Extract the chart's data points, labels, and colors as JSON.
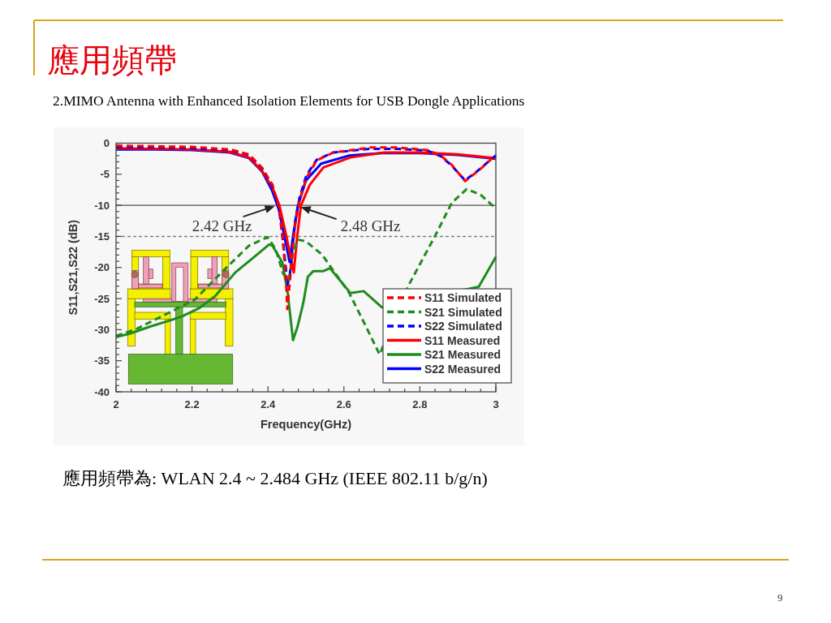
{
  "chart_data": {
    "type": "line",
    "title": "應用頻帶",
    "subtitle": "2.MIMO Antenna with Enhanced Isolation Elements for USB Dongle Applications",
    "xlabel": "Frequency(GHz)",
    "ylabel": "S11,S21,S22 (dB)",
    "xlim": [
      2,
      3
    ],
    "ylim": [
      -40,
      0
    ],
    "xticks": [
      2,
      {
        "value": 2.04,
        "label": null
      },
      {
        "value": 2.08,
        "label": null
      },
      {
        "value": 2.12,
        "label": null
      },
      {
        "value": 2.16,
        "label": null
      },
      2.2,
      {
        "value": 2.24,
        "label": null
      },
      {
        "value": 2.28,
        "label": null
      },
      {
        "value": 2.32,
        "label": null
      },
      {
        "value": 2.36,
        "label": null
      },
      2.4,
      {
        "value": 2.44,
        "label": null
      },
      {
        "value": 2.48,
        "label": null
      },
      {
        "value": 2.52,
        "label": null
      },
      {
        "value": 2.56,
        "label": null
      },
      2.6,
      {
        "value": 2.64,
        "label": null
      },
      {
        "value": 2.68,
        "label": null
      },
      {
        "value": 2.72,
        "label": null
      },
      {
        "value": 2.76,
        "label": null
      },
      2.8,
      {
        "value": 2.84,
        "label": null
      },
      {
        "value": 2.88,
        "label": null
      },
      {
        "value": 2.92,
        "label": null
      },
      {
        "value": 2.96,
        "label": null
      },
      3
    ],
    "yticks": [
      0,
      {
        "value": -1,
        "label": null
      },
      {
        "value": -2,
        "label": null
      },
      {
        "value": -3,
        "label": null
      },
      {
        "value": -4,
        "label": null
      },
      -5,
      {
        "value": -6,
        "label": null
      },
      {
        "value": -7,
        "label": null
      },
      {
        "value": -8,
        "label": null
      },
      {
        "value": -9,
        "label": null
      },
      -10,
      {
        "value": -11,
        "label": null
      },
      {
        "value": -12,
        "label": null
      },
      {
        "value": -13,
        "label": null
      },
      {
        "value": -14,
        "label": null
      },
      -15,
      {
        "value": -16,
        "label": null
      },
      {
        "value": -17,
        "label": null
      },
      {
        "value": -18,
        "label": null
      },
      {
        "value": -19,
        "label": null
      },
      -20,
      {
        "value": -21,
        "label": null
      },
      {
        "value": -22,
        "label": null
      },
      {
        "value": -23,
        "label": null
      },
      {
        "value": -24,
        "label": null
      },
      -25,
      {
        "value": -26,
        "label": null
      },
      {
        "value": -27,
        "label": null
      },
      {
        "value": -28,
        "label": null
      },
      {
        "value": -29,
        "label": null
      },
      -30,
      {
        "value": -31,
        "label": null
      },
      {
        "value": -32,
        "label": null
      },
      {
        "value": -33,
        "label": null
      },
      {
        "value": -34,
        "label": null
      },
      -35,
      {
        "value": -36,
        "label": null
      },
      {
        "value": -37,
        "label": null
      },
      {
        "value": -38,
        "label": null
      },
      {
        "value": -39,
        "label": null
      },
      -40
    ],
    "legend": "bottom right",
    "series": [
      {
        "name": "S11 Simulated",
        "color": "#ff0000",
        "line_style": "dashed",
        "x": [
          2.0,
          2.1,
          2.2,
          2.3,
          2.35,
          2.385,
          2.412,
          2.43,
          2.438,
          2.447,
          2.451,
          2.458,
          2.465,
          2.472,
          2.483,
          2.501,
          2.528,
          2.572,
          2.67,
          2.741,
          2.82,
          2.855,
          2.884,
          2.919,
          2.955,
          2.991,
          3.0
        ],
        "values": [
          -0.4,
          -0.5,
          -0.6,
          -1.0,
          -1.8,
          -4,
          -6.7,
          -10.5,
          -14.8,
          -21.4,
          -26.7,
          -22,
          -17,
          -13,
          -9.3,
          -5.6,
          -2.8,
          -1.5,
          -0.7,
          -0.7,
          -1.1,
          -2,
          -3.5,
          -6.1,
          -4.4,
          -2.4,
          -2.0
        ]
      },
      {
        "name": "S21 Simulated",
        "color": "#1e8c1e",
        "line_style": "dashed",
        "x": [
          2.0,
          2.05,
          2.145,
          2.207,
          2.252,
          2.296,
          2.35,
          2.399,
          2.42,
          2.44,
          2.455,
          2.465,
          2.478,
          2.5,
          2.542,
          2.613,
          2.65,
          2.694,
          2.77,
          2.841,
          2.884,
          2.923,
          2.96,
          2.987,
          3.0
        ],
        "values": [
          -31,
          -30,
          -27.1,
          -25.2,
          -22.4,
          -19.7,
          -16.5,
          -15.1,
          -17,
          -21,
          -22,
          -18,
          -15.5,
          -15.8,
          -17.9,
          -24,
          -28.5,
          -34,
          -22.9,
          -14.8,
          -9.6,
          -7.4,
          -8.3,
          -9.8,
          -10.5
        ]
      },
      {
        "name": "S22 Simulated",
        "color": "#0000ff",
        "line_style": "dashed",
        "x": [
          2.0,
          2.1,
          2.2,
          2.3,
          2.35,
          2.385,
          2.412,
          2.43,
          2.438,
          2.447,
          2.451,
          2.458,
          2.465,
          2.472,
          2.483,
          2.501,
          2.528,
          2.572,
          2.67,
          2.741,
          2.82,
          2.855,
          2.884,
          2.919,
          2.955,
          2.991,
          3.0
        ],
        "values": [
          -0.6,
          -0.7,
          -0.8,
          -1.1,
          -1.9,
          -4.1,
          -7,
          -11,
          -15,
          -20,
          -23,
          -21,
          -16.5,
          -12.5,
          -8.8,
          -5.2,
          -2.7,
          -1.5,
          -0.9,
          -0.9,
          -1.2,
          -2.1,
          -3.6,
          -6.0,
          -4.3,
          -2.4,
          -2.0
        ]
      },
      {
        "name": "S11 Measured",
        "color": "#ff0000",
        "line_style": "solid",
        "x": [
          2.0,
          2.1,
          2.2,
          2.3,
          2.35,
          2.385,
          2.412,
          2.43,
          2.445,
          2.457,
          2.468,
          2.477,
          2.487,
          2.51,
          2.546,
          2.617,
          2.706,
          2.8,
          2.9,
          3.0
        ],
        "values": [
          -0.8,
          -0.9,
          -1.0,
          -1.4,
          -2.3,
          -4.5,
          -7.2,
          -10,
          -14,
          -17.5,
          -20.8,
          -15,
          -10,
          -6.7,
          -3.9,
          -2.3,
          -1.5,
          -1.5,
          -1.8,
          -2.4
        ]
      },
      {
        "name": "S21 Measured",
        "color": "#1e8c1e",
        "line_style": "solid",
        "x": [
          2.0,
          2.038,
          2.09,
          2.143,
          2.172,
          2.22,
          2.261,
          2.314,
          2.368,
          2.403,
          2.412,
          2.438,
          2.452,
          2.466,
          2.478,
          2.493,
          2.505,
          2.519,
          2.545,
          2.563,
          2.617,
          2.652,
          2.7,
          2.955,
          3.0
        ],
        "values": [
          -31.2,
          -30.6,
          -29.5,
          -28.5,
          -27.9,
          -26.5,
          -24.6,
          -20.8,
          -18.1,
          -16.3,
          -16.5,
          -19.2,
          -24.1,
          -31.7,
          -29.5,
          -25.7,
          -21.5,
          -20.6,
          -20.6,
          -20.1,
          -24.1,
          -23.8,
          -26.4,
          -23.1,
          -18.3
        ]
      },
      {
        "name": "S22 Measured",
        "color": "#0000ff",
        "line_style": "solid",
        "x": [
          2.0,
          2.1,
          2.2,
          2.3,
          2.35,
          2.385,
          2.41,
          2.428,
          2.445,
          2.457,
          2.466,
          2.479,
          2.5,
          2.54,
          2.613,
          2.7,
          2.8,
          2.9,
          3.0
        ],
        "values": [
          -1.0,
          -1.0,
          -1.1,
          -1.5,
          -2.4,
          -4.6,
          -7.5,
          -10.5,
          -15.5,
          -19.1,
          -15,
          -10,
          -6,
          -3.3,
          -2.0,
          -1.6,
          -1.6,
          -1.9,
          -2.5
        ]
      }
    ],
    "ref_lines": [
      {
        "axis": "y",
        "value": -10,
        "color": "#808080",
        "line_style": "solid"
      },
      {
        "axis": "y",
        "value": -15,
        "color": "#808080",
        "line_style": "dashed"
      }
    ],
    "annotations": [
      "應用頻帶為: WLAN 2.4 ~ 2.484 GHz (IEEE 802.11 b/g/n)",
      "9",
      {
        "text": "2.42 GHz",
        "x": 2.42,
        "y": -10
      },
      {
        "text": "2.48 GHz",
        "x": 2.48,
        "y": -10
      }
    ]
  }
}
